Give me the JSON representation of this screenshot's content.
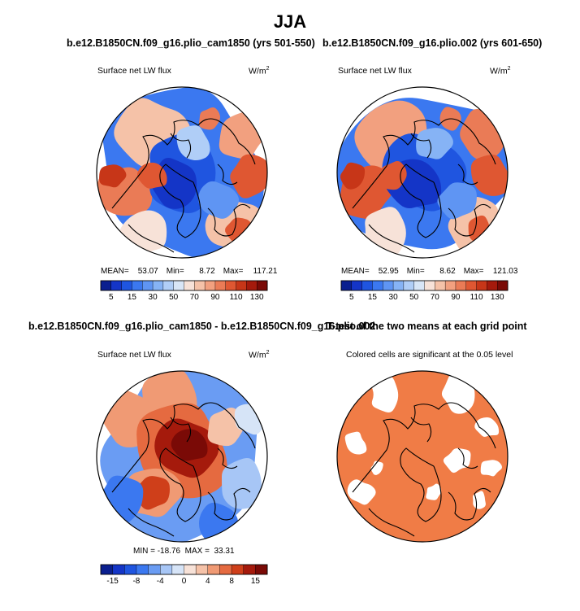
{
  "title": "JJA",
  "panels": [
    {
      "title": "b.e12.B1850CN.f09_g16.plio_cam1850 (yrs 501-550)",
      "variable": "Surface net LW flux",
      "units_base": "W/m",
      "units_exp": "2",
      "mean_label": "MEAN=",
      "mean": "53.07",
      "min_label": "Min=",
      "min": "8.72",
      "max_label": "Max=",
      "max": "117.21"
    },
    {
      "title": "b.e12.B1850CN.f09_g16.plio.002 (yrs 601-650)",
      "variable": "Surface net LW flux",
      "units_base": "W/m",
      "units_exp": "2",
      "mean_label": "MEAN=",
      "mean": "52.95",
      "min_label": "Min=",
      "min": "8.62",
      "max_label": "Max=",
      "max": "121.03"
    },
    {
      "title": "b.e12.B1850CN.f09_g16.plio_cam1850 - b.e12.B1850CN.f09_g16.plio.002",
      "variable": "Surface net LW flux",
      "units_base": "W/m",
      "units_exp": "2",
      "stats": "MIN = -18.76  MAX =  33.31"
    },
    {
      "title": "T-test of the two means at each grid point",
      "subtitle": "Colored cells are significant at the 0.05 level"
    }
  ],
  "chart_data": [
    {
      "type": "heatmap",
      "projection": "north-polar-stereographic",
      "title": "b.e12.B1850CN.f09_g16.plio_cam1850 (yrs 501-550)",
      "variable": "Surface net LW flux",
      "units": "W/m2",
      "mean": 53.07,
      "min": 8.72,
      "max": 117.21,
      "colorbar": {
        "levels": [
          5,
          10,
          15,
          20,
          30,
          40,
          50,
          60,
          70,
          80,
          90,
          100,
          110,
          120,
          130
        ],
        "labels": [
          "5",
          "15",
          "30",
          "50",
          "70",
          "90",
          "110",
          "130"
        ],
        "colors": [
          "#0a1f8f",
          "#1435c7",
          "#1f55e0",
          "#3b78f0",
          "#5f95f3",
          "#86b3f5",
          "#b0cef7",
          "#d8e6f7",
          "#f7e2d8",
          "#f5c2a8",
          "#f2a07f",
          "#ea7b56",
          "#df5732",
          "#c73618",
          "#a51a0c",
          "#7a0a06"
        ]
      }
    },
    {
      "type": "heatmap",
      "projection": "north-polar-stereographic",
      "title": "b.e12.B1850CN.f09_g16.plio.002 (yrs 601-650)",
      "variable": "Surface net LW flux",
      "units": "W/m2",
      "mean": 52.95,
      "min": 8.62,
      "max": 121.03,
      "colorbar": {
        "levels": [
          5,
          10,
          15,
          20,
          30,
          40,
          50,
          60,
          70,
          80,
          90,
          100,
          110,
          120,
          130
        ],
        "labels": [
          "5",
          "15",
          "30",
          "50",
          "70",
          "90",
          "110",
          "130"
        ],
        "colors": [
          "#0a1f8f",
          "#1435c7",
          "#1f55e0",
          "#3b78f0",
          "#5f95f3",
          "#86b3f5",
          "#b0cef7",
          "#d8e6f7",
          "#f7e2d8",
          "#f5c2a8",
          "#f2a07f",
          "#ea7b56",
          "#df5732",
          "#c73618",
          "#a51a0c",
          "#7a0a06"
        ]
      }
    },
    {
      "type": "heatmap",
      "projection": "north-polar-stereographic",
      "title": "b.e12.B1850CN.f09_g16.plio_cam1850 - b.e12.B1850CN.f09_g16.plio.002",
      "variable": "Surface net LW flux",
      "units": "W/m2",
      "min": -18.76,
      "max": 33.31,
      "colorbar": {
        "levels": [
          -15,
          -12,
          -8,
          -6,
          -4,
          -2,
          0,
          2,
          4,
          6,
          8,
          12,
          15
        ],
        "labels": [
          "-15",
          "-8",
          "-4",
          "0",
          "4",
          "8",
          "15"
        ],
        "colors": [
          "#0a1f8f",
          "#1435c7",
          "#1f55e0",
          "#3b78f0",
          "#6a9cf3",
          "#a7c6f6",
          "#d6e4f7",
          "#f7e2d8",
          "#f5c2a8",
          "#f09a74",
          "#e56a40",
          "#cf3f1a",
          "#a51a0c",
          "#7a0a06"
        ]
      }
    },
    {
      "type": "heatmap",
      "projection": "north-polar-stereographic",
      "title": "T-test of the two means at each grid point",
      "subtitle": "Colored cells are significant at the 0.05 level",
      "significance_level": 0.05,
      "colors": {
        "significant": "#f07c46",
        "not_significant": "#ffffff"
      }
    }
  ]
}
